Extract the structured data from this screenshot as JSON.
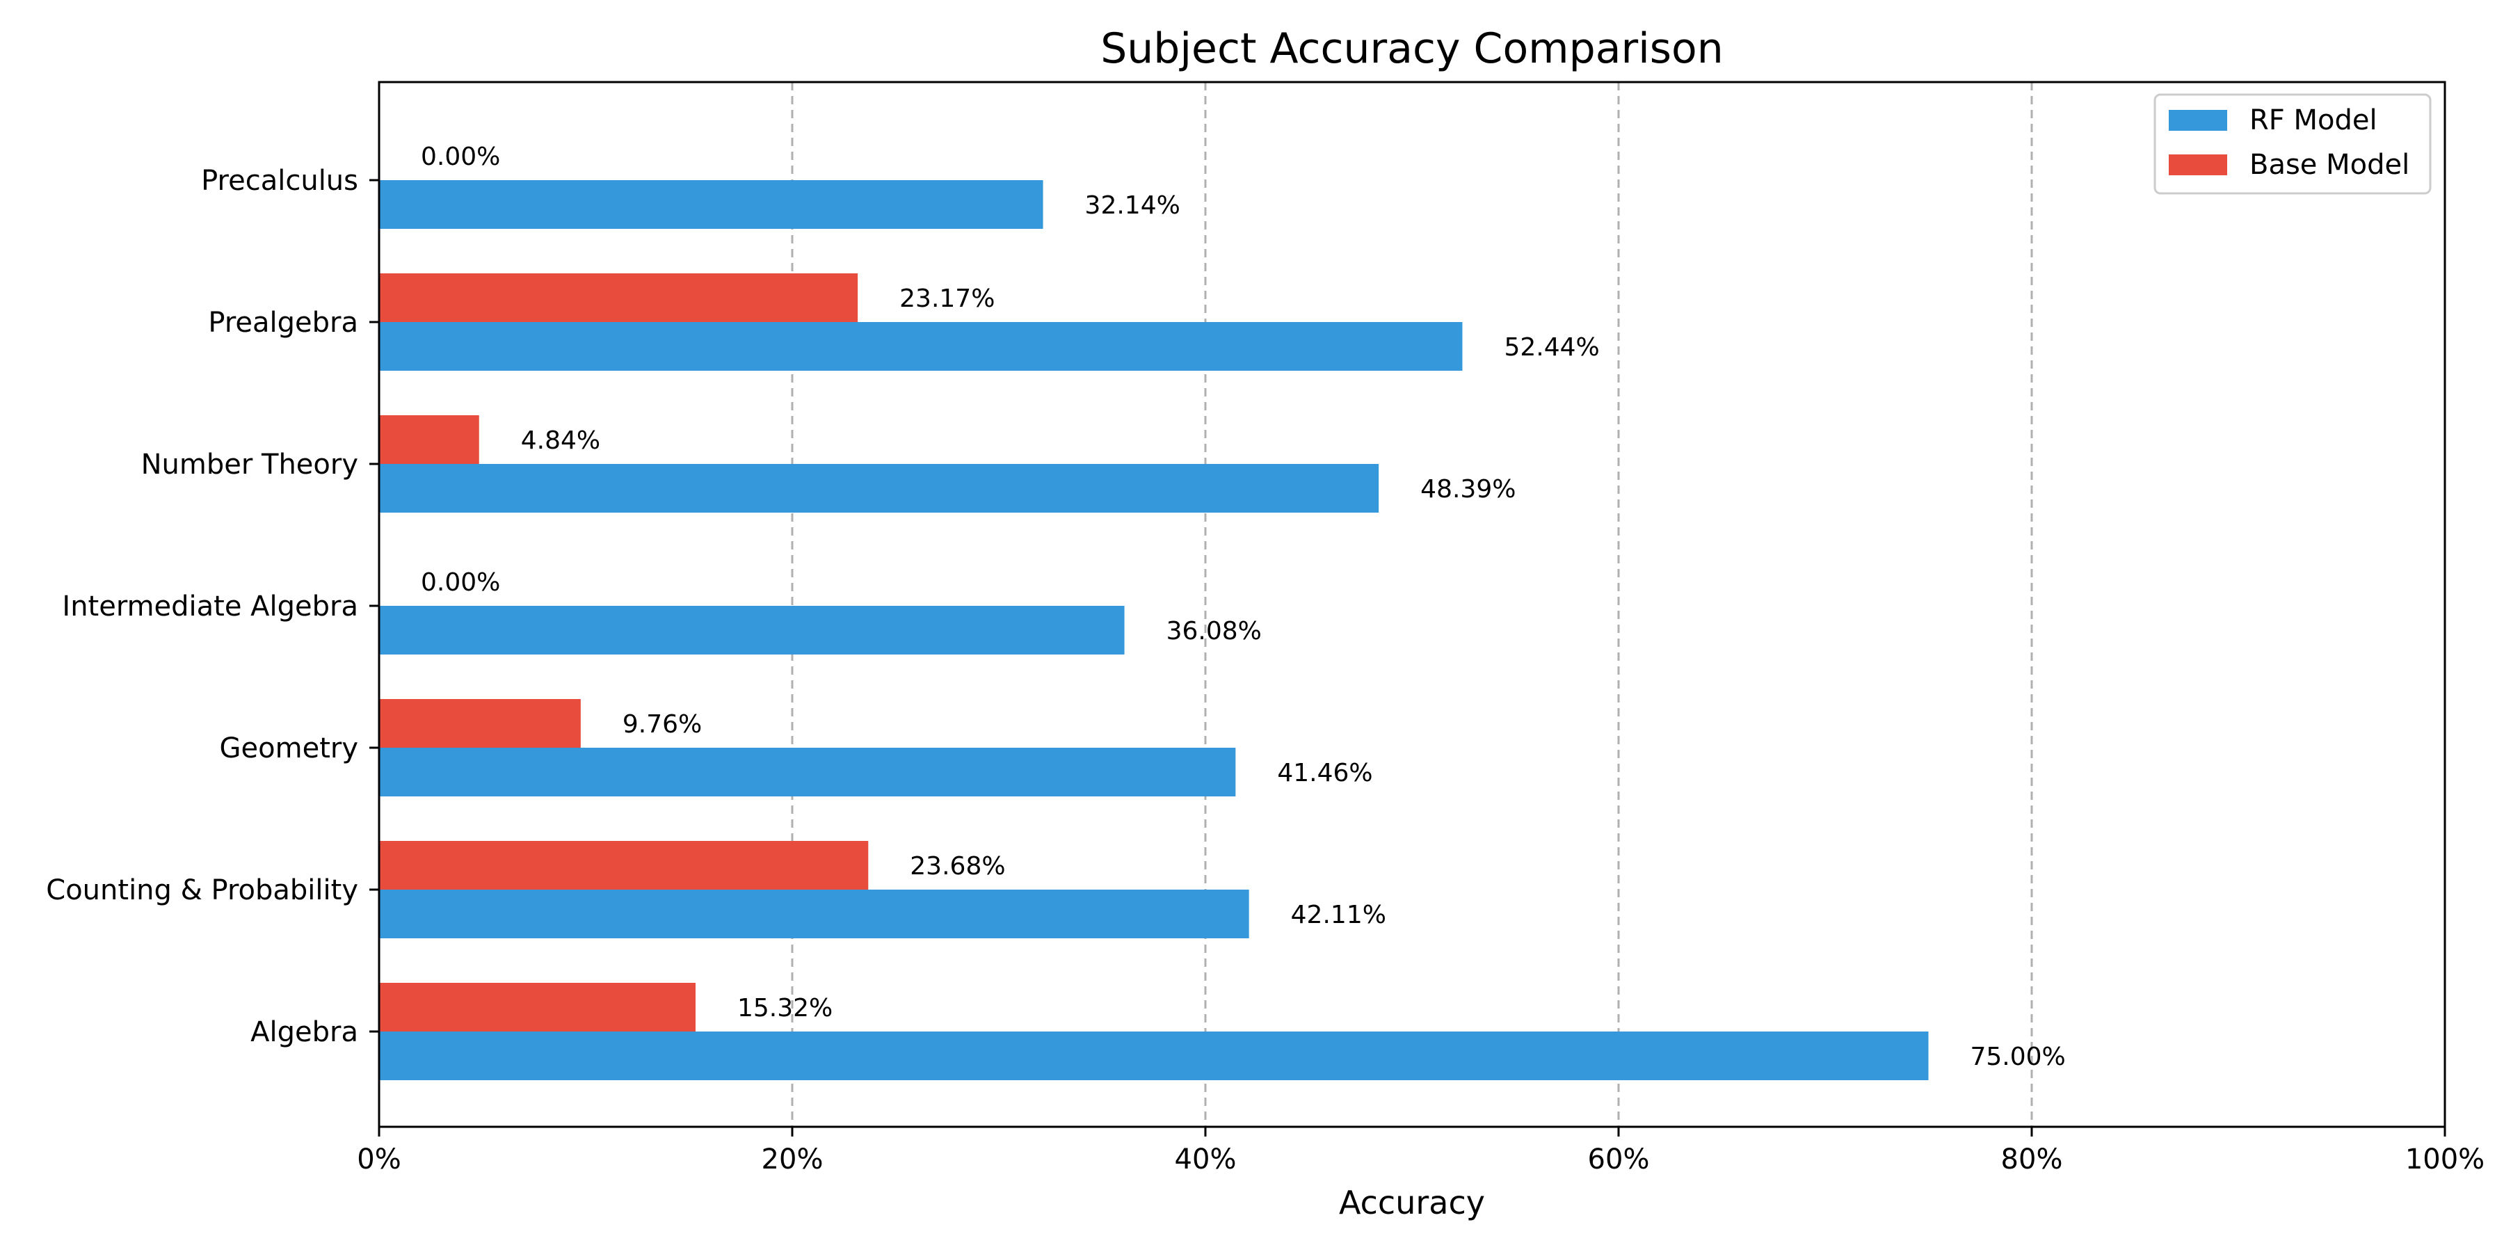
{
  "chart_data": {
    "type": "bar",
    "orientation": "horizontal",
    "title": "Subject Accuracy Comparison",
    "xlabel": "Accuracy",
    "ylabel": "",
    "xlim": [
      0,
      100
    ],
    "x_unit": "%",
    "x_ticks": [
      "0%",
      "20%",
      "40%",
      "60%",
      "80%",
      "100%"
    ],
    "grid": "vertical dashed",
    "legend_position": "top-right",
    "categories": [
      "Algebra",
      "Counting & Probability",
      "Geometry",
      "Intermediate Algebra",
      "Number Theory",
      "Prealgebra",
      "Precalculus"
    ],
    "series": [
      {
        "name": "RF Model",
        "color": "#3498db",
        "values": [
          75.0,
          42.11,
          41.46,
          36.08,
          48.39,
          52.44,
          32.14
        ],
        "labels": [
          "75.00%",
          "42.11%",
          "41.46%",
          "36.08%",
          "48.39%",
          "52.44%",
          "32.14%"
        ]
      },
      {
        "name": "Base Model",
        "color": "#e74c3c",
        "values": [
          15.32,
          23.68,
          9.76,
          0.0,
          4.84,
          23.17,
          0.0
        ],
        "labels": [
          "15.32%",
          "23.68%",
          "9.76%",
          "0.00%",
          "4.84%",
          "23.17%",
          "0.00%"
        ]
      }
    ]
  }
}
